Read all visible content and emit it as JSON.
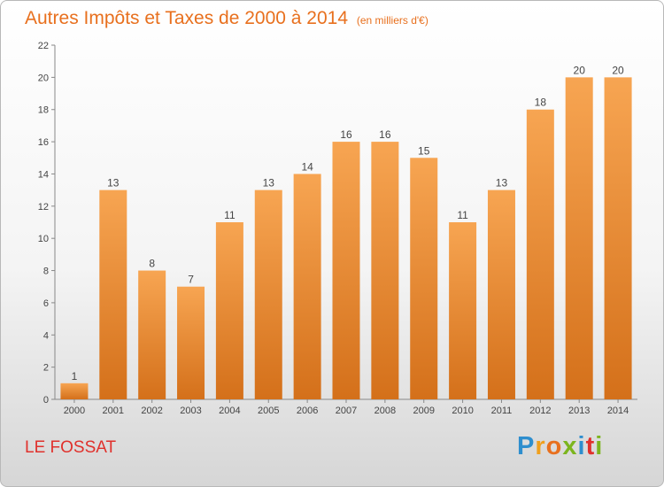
{
  "title": "Autres Impôts et Taxes de 2000 à 2014",
  "subtitle": "(en milliers d'€)",
  "place_name": "LE FOSSAT",
  "logo": {
    "letters": [
      "P",
      "r",
      "o",
      "x",
      "i",
      "t",
      "i"
    ],
    "colors": [
      "#2e8ece",
      "#f0a01e",
      "#e8701e",
      "#7cb51e",
      "#2e8ece",
      "#e0312c",
      "#7cb51e"
    ]
  },
  "colors": {
    "bar_top": "#f7a552",
    "bar_bottom": "#d4701a",
    "title": "#e8701e",
    "place": "#e0312c"
  },
  "chart_data": {
    "type": "bar",
    "title": "Autres Impôts et Taxes de 2000 à 2014",
    "subtitle": "(en milliers d'€)",
    "categories": [
      "2000",
      "2001",
      "2002",
      "2003",
      "2004",
      "2005",
      "2006",
      "2007",
      "2008",
      "2009",
      "2010",
      "2011",
      "2012",
      "2013",
      "2014"
    ],
    "values": [
      1,
      13,
      8,
      7,
      11,
      13,
      14,
      16,
      16,
      15,
      11,
      13,
      18,
      20,
      20
    ],
    "ylim": [
      0,
      22
    ],
    "yticks": [
      0,
      2,
      4,
      6,
      8,
      10,
      12,
      14,
      16,
      18,
      20,
      22
    ],
    "grid": false,
    "legend": "none"
  }
}
